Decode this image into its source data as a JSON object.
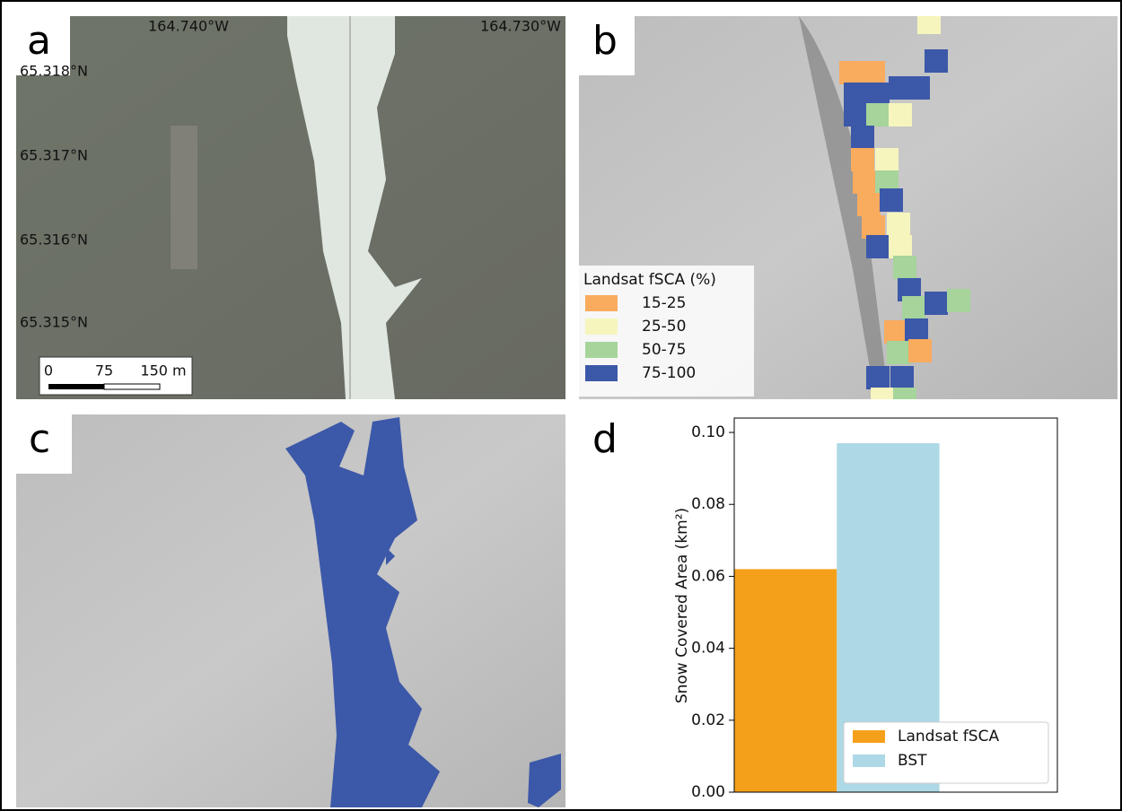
{
  "panels": {
    "a": {
      "label": "a",
      "lon_labels": [
        "164.740°W",
        "164.730°W"
      ],
      "lat_labels": [
        "65.318°N",
        "65.317°N",
        "65.316°N",
        "65.315°N"
      ],
      "scale_labels": [
        "0",
        "75",
        "150 m"
      ]
    },
    "b": {
      "label": "b",
      "legend_title": "Landsat fSCA (%)",
      "classes": [
        {
          "label": "15-25",
          "color": "#f9ab5e"
        },
        {
          "label": "25-50",
          "color": "#f6f5bd"
        },
        {
          "label": "50-75",
          "color": "#a6d49b"
        },
        {
          "label": "75-100",
          "color": "#3c58a8"
        }
      ]
    },
    "c": {
      "label": "c",
      "color": "#3c58a8"
    },
    "d": {
      "label": "d"
    }
  },
  "chart_data": {
    "type": "bar",
    "ylabel": "Snow Covered Area (km²)",
    "categories": [
      null
    ],
    "series": [
      {
        "name": "Landsat fSCA",
        "color": "#f5a01a",
        "values": [
          0.062
        ]
      },
      {
        "name": "BST",
        "color": "#add8e6",
        "values": [
          0.097
        ]
      }
    ],
    "ylim": [
      0,
      0.104
    ],
    "yticks": [
      {
        "value": 0,
        "label": "0.00"
      },
      {
        "value": 0.02,
        "label": "0.02"
      },
      {
        "value": 0.04,
        "label": "0.04"
      },
      {
        "value": 0.06,
        "label": "0.06"
      },
      {
        "value": 0.08,
        "label": "0.08"
      },
      {
        "value": 0.1,
        "label": "0.10"
      }
    ],
    "legend": "lower right"
  }
}
